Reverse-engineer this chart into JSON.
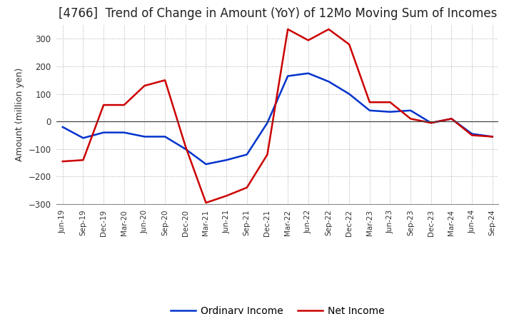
{
  "title": "[4766]  Trend of Change in Amount (YoY) of 12Mo Moving Sum of Incomes",
  "ylabel": "Amount (million yen)",
  "xlabels": [
    "Jun-19",
    "Sep-19",
    "Dec-19",
    "Mar-20",
    "Jun-20",
    "Sep-20",
    "Dec-20",
    "Mar-21",
    "Jun-21",
    "Sep-21",
    "Dec-21",
    "Mar-22",
    "Jun-22",
    "Sep-22",
    "Dec-22",
    "Mar-23",
    "Jun-23",
    "Sep-23",
    "Dec-23",
    "Mar-24",
    "Jun-24",
    "Sep-24"
  ],
  "ordinary_income": [
    -20,
    -60,
    -40,
    -40,
    -55,
    -55,
    -100,
    -155,
    -140,
    -120,
    -5,
    165,
    175,
    145,
    100,
    40,
    35,
    40,
    -5,
    10,
    -45,
    -55
  ],
  "net_income": [
    -145,
    -140,
    60,
    60,
    130,
    150,
    -90,
    -295,
    -270,
    -240,
    -120,
    335,
    295,
    335,
    280,
    70,
    70,
    10,
    -5,
    10,
    -50,
    -55
  ],
  "ordinary_color": "#0033cc",
  "net_color": "#cc0000",
  "ylim": [
    -300,
    350
  ],
  "yticks": [
    -300,
    -200,
    -100,
    0,
    100,
    200,
    300
  ],
  "background_color": "#ffffff",
  "grid_color": "#aaaaaa",
  "title_fontsize": 12,
  "axis_fontsize": 9,
  "legend_labels": [
    "Ordinary Income",
    "Net Income"
  ]
}
